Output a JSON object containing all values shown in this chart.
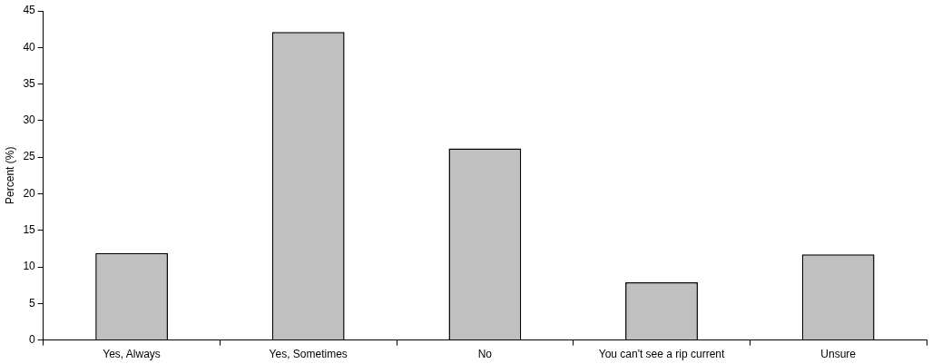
{
  "chart_data": {
    "type": "bar",
    "ylabel": "Percent (%)",
    "categories": [
      "Yes, Always",
      "Yes, Sometimes",
      "No",
      "You can't see a rip current",
      "Unsure"
    ],
    "values": [
      11.9,
      42.1,
      26.2,
      7.9,
      11.7
    ],
    "color": "#c0c0c0",
    "ylim": [
      0,
      45
    ],
    "yticks": [
      0,
      5,
      10,
      15,
      20,
      25,
      30,
      35,
      40,
      45
    ],
    "grid": false,
    "legend": false
  }
}
